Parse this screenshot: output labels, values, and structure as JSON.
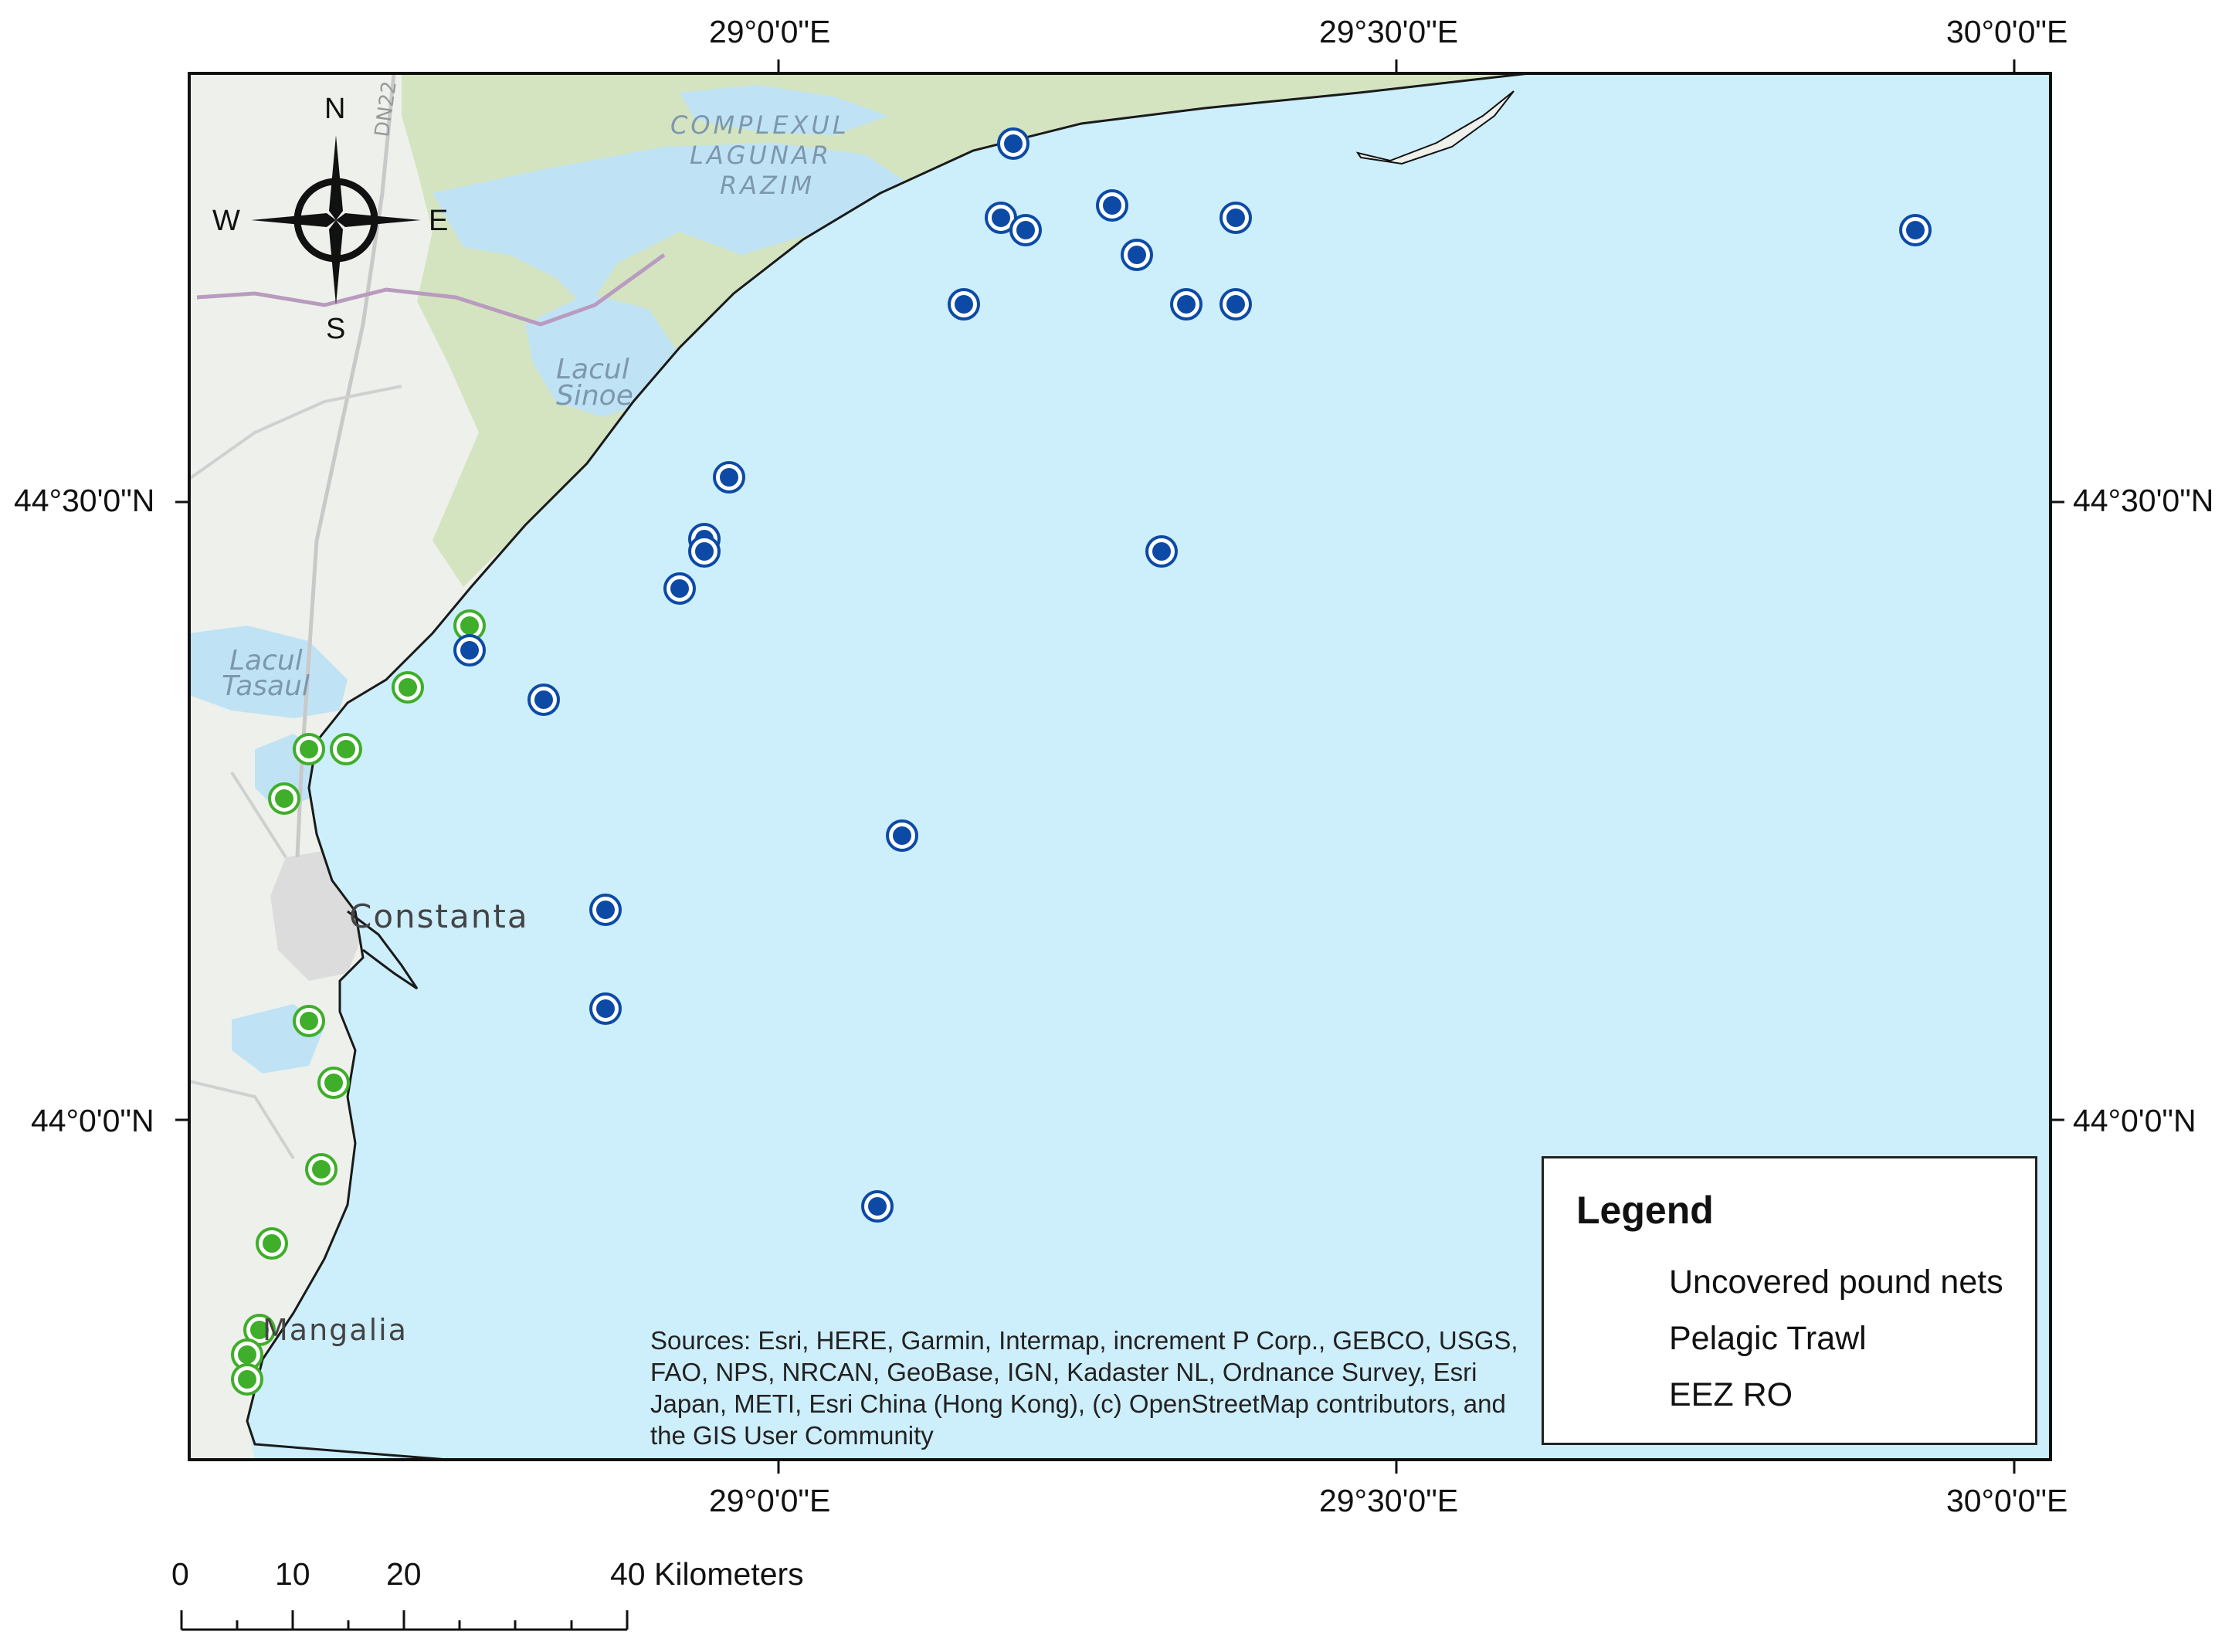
{
  "map": {
    "lon_labels_top": [
      "29°0'0\"E",
      "29°30'0\"E",
      "30°0'0\"E"
    ],
    "lon_labels_bottom": [
      "29°0'0\"E",
      "29°30'0\"E",
      "30°0'0\"E"
    ],
    "lat_labels_left": [
      "44°30'0\"N",
      "44°0'0\"N"
    ],
    "lat_labels_right": [
      "44°30'0\"N",
      "44°0'0\"N"
    ],
    "colors": {
      "sea": "#cdeefb",
      "land": "#eef0eb",
      "wetland": "#d4e4c1",
      "lagoon": "#bfe3f5",
      "eez_line": "#1a1a1a",
      "pound_nets": "#3fae2a",
      "pelagic_trawl": "#0c4aa6"
    }
  },
  "place_labels": {
    "complexul_1": "COMPLEXUL",
    "complexul_2": "LAGUNAR",
    "complexul_3": "RAZIM",
    "sinoe_1": "Lacul",
    "sinoe_2": "Sinoe",
    "tasaul_1": "Lacul",
    "tasaul_2": "Tasaul",
    "constanta": "Constanta",
    "mangalia": "Mangalia",
    "road_dn22": "DN22"
  },
  "compass": {
    "n": "N",
    "s": "S",
    "e": "E",
    "w": "W"
  },
  "legend": {
    "title": "Legend",
    "items": [
      {
        "label": "Uncovered pound nets",
        "symbol": "green-circle"
      },
      {
        "label": "Pelagic Trawl",
        "symbol": "blue-circle"
      },
      {
        "label": "EEZ RO",
        "symbol": "white-rectangle"
      }
    ]
  },
  "sources_text": "Sources: Esri, HERE, Garmin, Intermap, increment P Corp., GEBCO, USGS, FAO, NPS, NRCAN, GeoBase, IGN, Kadaster NL, Ordnance Survey, Esri Japan, METI, Esri China (Hong Kong), (c) OpenStreetMap contributors, and the GIS User Community",
  "scale_bar": {
    "labels": [
      "0",
      "10",
      "20",
      "40 Kilometers"
    ]
  },
  "points": {
    "pound_nets": [
      {
        "lon": 28.75,
        "lat": 44.4
      },
      {
        "lon": 28.7,
        "lat": 44.35
      },
      {
        "lon": 28.62,
        "lat": 44.3
      },
      {
        "lon": 28.65,
        "lat": 44.3
      },
      {
        "lon": 28.6,
        "lat": 44.26
      },
      {
        "lon": 28.62,
        "lat": 44.08
      },
      {
        "lon": 28.64,
        "lat": 44.03
      },
      {
        "lon": 28.63,
        "lat": 43.96
      },
      {
        "lon": 28.59,
        "lat": 43.9
      },
      {
        "lon": 28.58,
        "lat": 43.83
      },
      {
        "lon": 28.57,
        "lat": 43.81
      },
      {
        "lon": 28.57,
        "lat": 43.79
      }
    ],
    "pelagic_trawl": [
      {
        "lon": 29.19,
        "lat": 44.79
      },
      {
        "lon": 29.18,
        "lat": 44.73
      },
      {
        "lon": 29.2,
        "lat": 44.72
      },
      {
        "lon": 29.27,
        "lat": 44.74
      },
      {
        "lon": 29.37,
        "lat": 44.73
      },
      {
        "lon": 29.29,
        "lat": 44.7
      },
      {
        "lon": 29.15,
        "lat": 44.66
      },
      {
        "lon": 29.33,
        "lat": 44.66
      },
      {
        "lon": 29.37,
        "lat": 44.66
      },
      {
        "lon": 29.92,
        "lat": 44.72
      },
      {
        "lon": 28.96,
        "lat": 44.52
      },
      {
        "lon": 28.94,
        "lat": 44.47
      },
      {
        "lon": 28.94,
        "lat": 44.46
      },
      {
        "lon": 28.92,
        "lat": 44.43
      },
      {
        "lon": 29.31,
        "lat": 44.46
      },
      {
        "lon": 28.75,
        "lat": 44.38
      },
      {
        "lon": 28.81,
        "lat": 44.34
      },
      {
        "lon": 29.1,
        "lat": 44.23
      },
      {
        "lon": 28.86,
        "lat": 44.17
      },
      {
        "lon": 28.86,
        "lat": 44.09
      },
      {
        "lon": 29.08,
        "lat": 43.93
      }
    ]
  }
}
